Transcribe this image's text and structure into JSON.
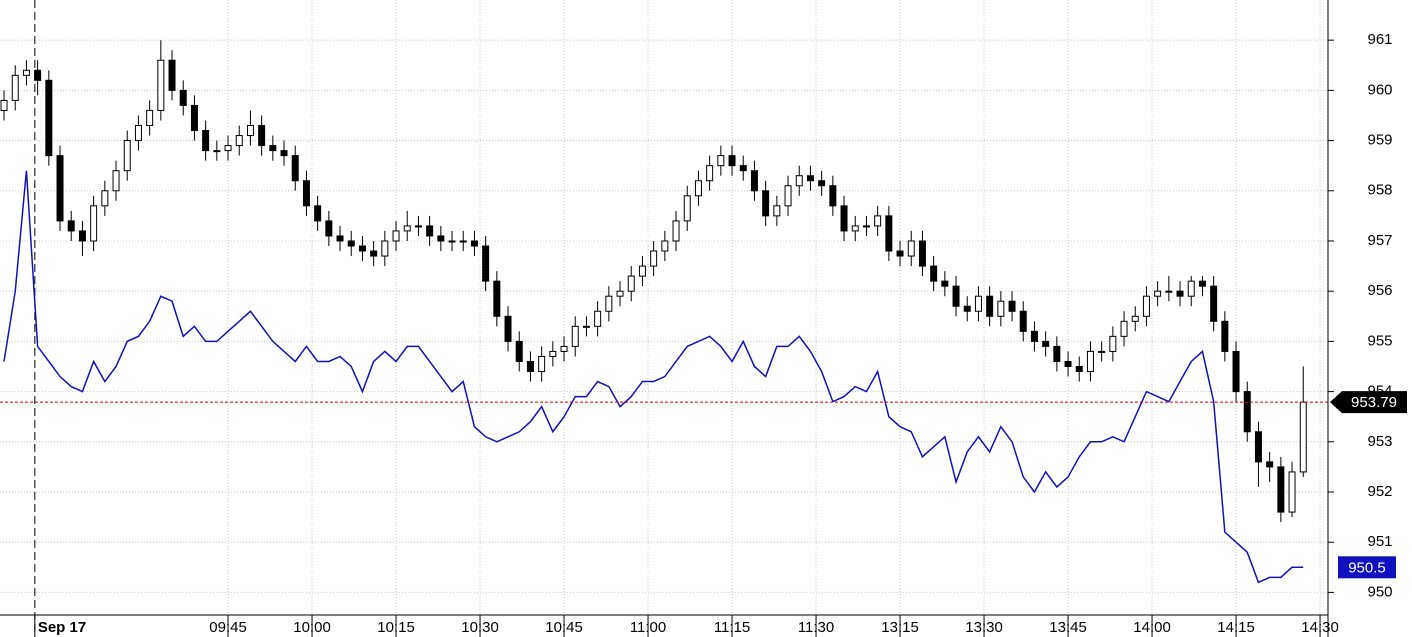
{
  "chart_data": {
    "type": "candlestick",
    "xlim": [
      -0.36,
      118.21
    ],
    "ylim": [
      949.55,
      961.8
    ],
    "yticks": [
      950,
      951,
      952,
      953,
      954,
      955,
      956,
      957,
      958,
      959,
      960,
      961
    ],
    "xticks": [
      {
        "value": 2.75,
        "label": "Sep 17"
      },
      {
        "value": 20,
        "label": "09:45"
      },
      {
        "value": 27.5,
        "label": "10:00"
      },
      {
        "value": 35,
        "label": "10:15"
      },
      {
        "value": 42.5,
        "label": "10:30"
      },
      {
        "value": 50,
        "label": "10:45"
      },
      {
        "value": 57.5,
        "label": "11:00"
      },
      {
        "value": 65,
        "label": "11:15"
      },
      {
        "value": 72.5,
        "label": "11:30"
      },
      {
        "value": 80,
        "label": "13:15"
      },
      {
        "value": 87.5,
        "label": "13:30"
      },
      {
        "value": 95,
        "label": "13:45"
      },
      {
        "value": 102.5,
        "label": "14:00"
      },
      {
        "value": 110,
        "label": "14:15"
      },
      {
        "value": 117.5,
        "label": "14:30"
      }
    ],
    "grid": true,
    "ohlc": [
      [
        959.6,
        960.0,
        959.4,
        959.8
      ],
      [
        959.8,
        960.5,
        959.6,
        960.3
      ],
      [
        960.3,
        960.6,
        960.1,
        960.4
      ],
      [
        960.4,
        960.6,
        959.9,
        960.2
      ],
      [
        960.2,
        960.4,
        958.5,
        958.7
      ],
      [
        958.7,
        958.9,
        957.2,
        957.4
      ],
      [
        957.4,
        957.6,
        957.0,
        957.2
      ],
      [
        957.2,
        957.4,
        956.7,
        957.0
      ],
      [
        957.0,
        957.9,
        956.8,
        957.7
      ],
      [
        957.7,
        958.2,
        957.5,
        958.0
      ],
      [
        958.0,
        958.6,
        957.8,
        958.4
      ],
      [
        958.4,
        959.2,
        958.2,
        959.0
      ],
      [
        959.0,
        959.5,
        958.8,
        959.3
      ],
      [
        959.3,
        959.8,
        959.1,
        959.6
      ],
      [
        959.6,
        961.0,
        959.4,
        960.6
      ],
      [
        960.6,
        960.8,
        959.8,
        960.0
      ],
      [
        960.0,
        960.2,
        959.5,
        959.7
      ],
      [
        959.7,
        959.9,
        959.0,
        959.2
      ],
      [
        959.2,
        959.4,
        958.6,
        958.8
      ],
      [
        958.8,
        959.0,
        958.6,
        958.8
      ],
      [
        958.8,
        959.1,
        958.6,
        958.9
      ],
      [
        958.9,
        959.3,
        958.7,
        959.1
      ],
      [
        959.1,
        959.6,
        958.9,
        959.3
      ],
      [
        959.3,
        959.5,
        958.7,
        958.9
      ],
      [
        958.9,
        959.1,
        958.6,
        958.8
      ],
      [
        958.8,
        959.0,
        958.5,
        958.7
      ],
      [
        958.7,
        958.9,
        958.0,
        958.2
      ],
      [
        958.2,
        958.4,
        957.5,
        957.7
      ],
      [
        957.7,
        957.9,
        957.2,
        957.4
      ],
      [
        957.4,
        957.6,
        956.9,
        957.1
      ],
      [
        957.1,
        957.3,
        956.8,
        957.0
      ],
      [
        957.0,
        957.2,
        956.7,
        956.9
      ],
      [
        956.9,
        957.1,
        956.6,
        956.8
      ],
      [
        956.8,
        957.0,
        956.5,
        956.7
      ],
      [
        956.7,
        957.2,
        956.5,
        957.0
      ],
      [
        957.0,
        957.4,
        956.8,
        957.2
      ],
      [
        957.2,
        957.6,
        957.0,
        957.3
      ],
      [
        957.3,
        957.5,
        957.1,
        957.3
      ],
      [
        957.3,
        957.5,
        956.9,
        957.1
      ],
      [
        957.1,
        957.3,
        956.8,
        957.0
      ],
      [
        957.0,
        957.2,
        956.8,
        957.0
      ],
      [
        957.0,
        957.2,
        956.8,
        957.0
      ],
      [
        957.0,
        957.2,
        956.7,
        956.9
      ],
      [
        956.9,
        957.1,
        956.0,
        956.2
      ],
      [
        956.2,
        956.4,
        955.3,
        955.5
      ],
      [
        955.5,
        955.7,
        954.8,
        955.0
      ],
      [
        955.0,
        955.2,
        954.4,
        954.6
      ],
      [
        954.6,
        954.8,
        954.2,
        954.4
      ],
      [
        954.4,
        954.9,
        954.2,
        954.7
      ],
      [
        954.7,
        955.0,
        954.5,
        954.8
      ],
      [
        954.8,
        955.1,
        954.6,
        954.9
      ],
      [
        954.9,
        955.5,
        954.7,
        955.3
      ],
      [
        955.3,
        955.5,
        955.1,
        955.3
      ],
      [
        955.3,
        955.8,
        955.1,
        955.6
      ],
      [
        955.6,
        956.1,
        955.4,
        955.9
      ],
      [
        955.9,
        956.2,
        955.7,
        956.0
      ],
      [
        956.0,
        956.5,
        955.8,
        956.3
      ],
      [
        956.3,
        956.7,
        956.1,
        956.5
      ],
      [
        956.5,
        957.0,
        956.3,
        956.8
      ],
      [
        956.8,
        957.2,
        956.6,
        957.0
      ],
      [
        957.0,
        957.6,
        956.8,
        957.4
      ],
      [
        957.4,
        958.1,
        957.2,
        957.9
      ],
      [
        957.9,
        958.4,
        957.7,
        958.2
      ],
      [
        958.2,
        958.7,
        958.0,
        958.5
      ],
      [
        958.5,
        958.9,
        958.3,
        958.7
      ],
      [
        958.7,
        958.9,
        958.3,
        958.5
      ],
      [
        958.5,
        958.7,
        958.2,
        958.4
      ],
      [
        958.4,
        958.6,
        957.8,
        958.0
      ],
      [
        958.0,
        958.2,
        957.3,
        957.5
      ],
      [
        957.5,
        957.9,
        957.3,
        957.7
      ],
      [
        957.7,
        958.3,
        957.5,
        958.1
      ],
      [
        958.1,
        958.5,
        957.9,
        958.3
      ],
      [
        958.3,
        958.5,
        958.0,
        958.2
      ],
      [
        958.2,
        958.4,
        957.9,
        958.1
      ],
      [
        958.1,
        958.3,
        957.5,
        957.7
      ],
      [
        957.7,
        957.9,
        957.0,
        957.2
      ],
      [
        957.2,
        957.5,
        957.0,
        957.3
      ],
      [
        957.3,
        957.5,
        957.1,
        957.3
      ],
      [
        957.3,
        957.7,
        957.1,
        957.5
      ],
      [
        957.5,
        957.7,
        956.6,
        956.8
      ],
      [
        956.8,
        957.0,
        956.5,
        956.7
      ],
      [
        956.7,
        957.2,
        956.5,
        957.0
      ],
      [
        957.0,
        957.2,
        956.3,
        956.5
      ],
      [
        956.5,
        956.7,
        956.0,
        956.2
      ],
      [
        956.2,
        956.4,
        955.9,
        956.1
      ],
      [
        956.1,
        956.3,
        955.5,
        955.7
      ],
      [
        955.7,
        955.9,
        955.4,
        955.6
      ],
      [
        955.6,
        956.1,
        955.4,
        955.9
      ],
      [
        955.9,
        956.1,
        955.3,
        955.5
      ],
      [
        955.5,
        956.0,
        955.3,
        955.8
      ],
      [
        955.8,
        956.0,
        955.4,
        955.6
      ],
      [
        955.6,
        955.8,
        955.0,
        955.2
      ],
      [
        955.2,
        955.4,
        954.8,
        955.0
      ],
      [
        955.0,
        955.2,
        954.7,
        954.9
      ],
      [
        954.9,
        955.1,
        954.4,
        954.6
      ],
      [
        954.6,
        954.8,
        954.3,
        954.5
      ],
      [
        954.5,
        954.7,
        954.2,
        954.4
      ],
      [
        954.4,
        955.0,
        954.2,
        954.8
      ],
      [
        954.8,
        955.0,
        954.6,
        954.8
      ],
      [
        954.8,
        955.3,
        954.6,
        955.1
      ],
      [
        955.1,
        955.6,
        954.9,
        955.4
      ],
      [
        955.4,
        955.7,
        955.2,
        955.5
      ],
      [
        955.5,
        956.1,
        955.3,
        955.9
      ],
      [
        955.9,
        956.2,
        955.7,
        956.0
      ],
      [
        956.0,
        956.3,
        955.8,
        956.0
      ],
      [
        956.0,
        956.2,
        955.7,
        955.9
      ],
      [
        955.9,
        956.3,
        955.7,
        956.2
      ],
      [
        956.2,
        956.3,
        955.9,
        956.1
      ],
      [
        956.1,
        956.3,
        955.2,
        955.4
      ],
      [
        955.4,
        955.6,
        954.6,
        954.8
      ],
      [
        954.8,
        955.0,
        953.8,
        954.0
      ],
      [
        954.0,
        954.2,
        953.0,
        953.2
      ],
      [
        953.2,
        953.4,
        952.1,
        952.6
      ],
      [
        952.6,
        952.8,
        952.2,
        952.5
      ],
      [
        952.5,
        952.7,
        951.4,
        951.6
      ],
      [
        951.6,
        952.6,
        951.5,
        952.4
      ],
      [
        952.4,
        954.5,
        952.3,
        953.79
      ]
    ],
    "line": {
      "color": "#1010c0",
      "values": [
        954.6,
        956.0,
        958.4,
        954.9,
        954.6,
        954.3,
        954.1,
        954.0,
        954.6,
        954.2,
        954.5,
        955.0,
        955.1,
        955.4,
        955.9,
        955.8,
        955.1,
        955.3,
        955.0,
        955.0,
        955.2,
        955.4,
        955.6,
        955.3,
        955.0,
        954.8,
        954.6,
        954.9,
        954.6,
        954.6,
        954.7,
        954.5,
        954.0,
        954.6,
        954.8,
        954.6,
        954.9,
        954.9,
        954.6,
        954.3,
        954.0,
        954.2,
        953.3,
        953.1,
        953.0,
        953.1,
        953.2,
        953.4,
        953.7,
        953.2,
        953.5,
        953.9,
        953.9,
        954.2,
        954.1,
        953.7,
        953.9,
        954.2,
        954.2,
        954.3,
        954.6,
        954.9,
        955.0,
        955.1,
        954.9,
        954.6,
        955.0,
        954.5,
        954.3,
        954.9,
        954.9,
        955.1,
        954.8,
        954.4,
        953.8,
        953.9,
        954.1,
        954.0,
        954.4,
        953.5,
        953.3,
        953.2,
        952.7,
        952.9,
        953.1,
        952.2,
        952.8,
        953.1,
        952.8,
        953.3,
        953.0,
        952.3,
        952.0,
        952.4,
        952.1,
        952.3,
        952.7,
        953.0,
        953.0,
        953.1,
        953.0,
        953.5,
        954.0,
        953.9,
        953.8,
        954.2,
        954.6,
        954.8,
        953.8,
        951.2,
        951.0,
        950.8,
        950.2,
        950.3,
        950.3,
        950.5,
        950.5
      ]
    },
    "last_price_color": "#cc0000"
  }
}
